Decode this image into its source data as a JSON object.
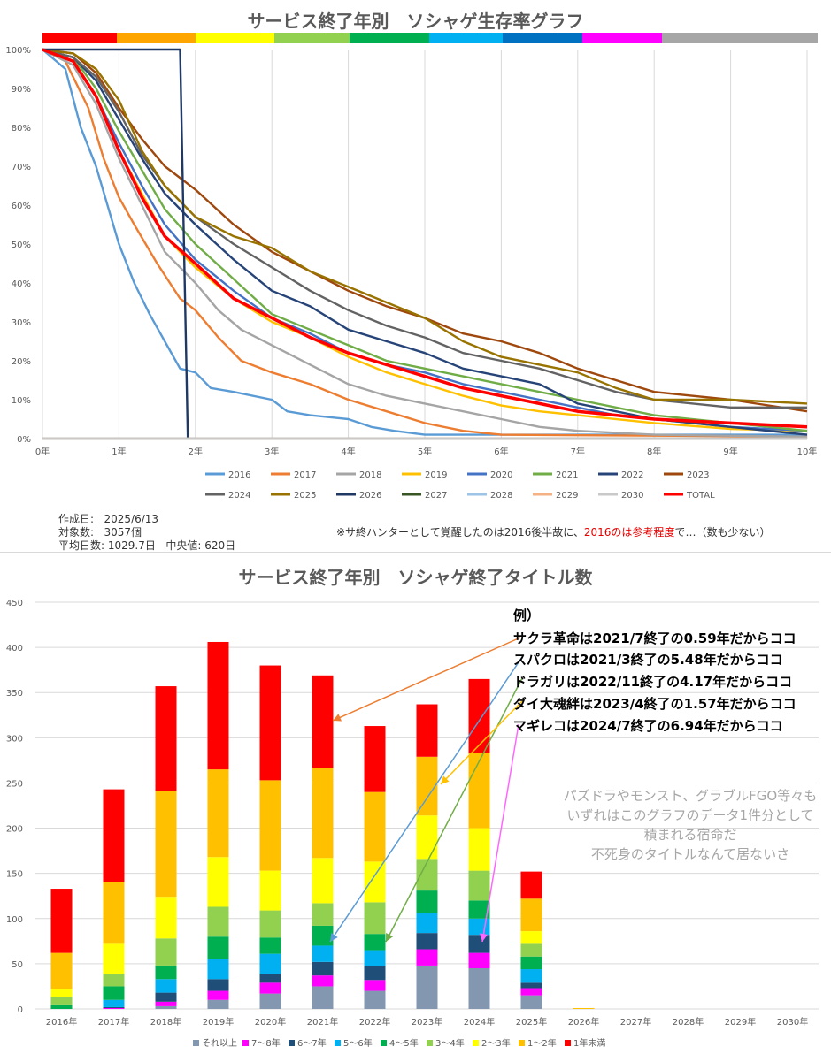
{
  "survival_chart": {
    "title": "サービス終了年別　ソシャゲ生存率グラフ",
    "color_bar": [
      "#ff0000",
      "#ffa500",
      "#ffff00",
      "#92d050",
      "#00b050",
      "#00b0f0",
      "#0070c0",
      "#ff00ff",
      "#a6a6a6"
    ],
    "chart_data": {
      "type": "line",
      "xlabel": "",
      "ylabel": "",
      "x_ticks": [
        "0年",
        "1年",
        "2年",
        "3年",
        "4年",
        "5年",
        "6年",
        "7年",
        "8年",
        "9年",
        "10年"
      ],
      "y_ticks": [
        "0%",
        "10%",
        "20%",
        "30%",
        "40%",
        "50%",
        "60%",
        "70%",
        "80%",
        "90%",
        "100%"
      ],
      "xlim": [
        0,
        10
      ],
      "ylim": [
        0,
        100
      ],
      "grid": "vertical",
      "legend": "bottom",
      "series": [
        {
          "name": "2016",
          "color": "#5b9bd5",
          "x": [
            0,
            0.3,
            0.5,
            0.7,
            1,
            1.2,
            1.4,
            1.6,
            1.8,
            2,
            2.2,
            2.5,
            3,
            3.2,
            3.5,
            4,
            4.3,
            4.6,
            5,
            10
          ],
          "y": [
            100,
            95,
            80,
            70,
            50,
            40,
            32,
            25,
            18,
            17,
            13,
            12,
            10,
            7,
            6,
            5,
            3,
            2,
            1,
            1
          ]
        },
        {
          "name": "2017",
          "color": "#ed7d31",
          "x": [
            0,
            0.3,
            0.6,
            0.8,
            1,
            1.2,
            1.5,
            1.8,
            2,
            2.3,
            2.6,
            3,
            3.5,
            4,
            4.5,
            5,
            5.5,
            6,
            10
          ],
          "y": [
            100,
            97,
            85,
            72,
            62,
            55,
            45,
            36,
            33,
            26,
            20,
            17,
            14,
            10,
            7,
            4,
            2,
            1,
            0.5
          ]
        },
        {
          "name": "2018",
          "color": "#a5a5a5",
          "x": [
            0,
            0.4,
            0.7,
            1,
            1.3,
            1.6,
            2,
            2.3,
            2.6,
            3,
            3.5,
            4,
            4.5,
            5,
            5.5,
            6,
            6.5,
            7,
            8,
            10
          ],
          "y": [
            100,
            96,
            86,
            72,
            60,
            48,
            40,
            33,
            28,
            24,
            19,
            14,
            11,
            9,
            7,
            5,
            3,
            2,
            1,
            0.5
          ]
        },
        {
          "name": "2019",
          "color": "#ffc000",
          "x": [
            0,
            0.4,
            0.7,
            1,
            1.3,
            1.6,
            2,
            2.5,
            3,
            3.5,
            4,
            4.5,
            5,
            5.5,
            6,
            6.5,
            7,
            8,
            9,
            10
          ],
          "y": [
            100,
            97,
            88,
            74,
            63,
            52,
            44,
            36,
            30,
            26,
            21,
            17,
            14,
            11,
            8.5,
            7,
            6,
            4,
            2.5,
            2
          ]
        },
        {
          "name": "2020",
          "color": "#4472c4",
          "x": [
            0,
            0.4,
            0.7,
            1,
            1.3,
            1.6,
            2,
            2.5,
            3,
            3.5,
            4,
            4.5,
            5,
            5.5,
            6,
            6.5,
            7,
            7.5,
            8,
            9,
            10
          ],
          "y": [
            100,
            97,
            88,
            76,
            65,
            55,
            46,
            38,
            31,
            27,
            22,
            19,
            17,
            14,
            12,
            10,
            8,
            6,
            5,
            3,
            2
          ]
        },
        {
          "name": "2021",
          "color": "#70ad47",
          "x": [
            0,
            0.4,
            0.7,
            1,
            1.3,
            1.6,
            2,
            2.5,
            3,
            3.5,
            4,
            4.5,
            5,
            5.5,
            6,
            6.5,
            7,
            7.5,
            8,
            9,
            10
          ],
          "y": [
            100,
            98,
            90,
            79,
            69,
            59,
            50,
            41,
            32,
            28,
            24,
            20,
            18,
            16,
            14,
            12,
            10,
            8,
            6,
            4,
            2
          ]
        },
        {
          "name": "2022",
          "color": "#264478",
          "x": [
            0,
            0.4,
            0.7,
            1,
            1.3,
            1.6,
            2,
            2.5,
            3,
            3.5,
            4,
            4.5,
            5,
            5.5,
            6,
            6.5,
            7,
            7.5,
            8,
            9,
            10
          ],
          "y": [
            100,
            98,
            92,
            82,
            72,
            63,
            55,
            46,
            38,
            34,
            28,
            25,
            22,
            18,
            16,
            14,
            9,
            7,
            5,
            3,
            1
          ]
        },
        {
          "name": "2023",
          "color": "#9e480e",
          "x": [
            0,
            0.4,
            0.7,
            1,
            1.3,
            1.6,
            2,
            2.5,
            3,
            3.5,
            4,
            4.5,
            5,
            5.5,
            6,
            6.5,
            7,
            7.5,
            8,
            9,
            10
          ],
          "y": [
            100,
            99,
            94,
            85,
            77,
            70,
            64,
            55,
            48,
            43,
            38,
            34,
            31,
            27,
            25,
            22,
            18,
            15,
            12,
            10,
            7
          ]
        },
        {
          "name": "2024",
          "color": "#636363",
          "x": [
            0,
            0.4,
            0.7,
            1,
            1.3,
            1.6,
            2,
            2.5,
            3,
            3.5,
            4,
            4.5,
            5,
            5.5,
            6,
            6.5,
            7,
            7.5,
            8,
            9,
            10
          ],
          "y": [
            100,
            98,
            93,
            84,
            73,
            65,
            57,
            50,
            44,
            38,
            33,
            29,
            26,
            22,
            20,
            18,
            15,
            12,
            10,
            8,
            8
          ]
        },
        {
          "name": "2025",
          "color": "#997300",
          "x": [
            0,
            0.4,
            0.7,
            1,
            1.3,
            1.6,
            2,
            2.5,
            3,
            3.5,
            4,
            4.5,
            5,
            5.5,
            6,
            6.5,
            7,
            7.5,
            8,
            9,
            10
          ],
          "y": [
            100,
            99,
            95,
            87,
            74,
            65,
            57,
            52,
            49,
            43,
            39,
            35,
            31,
            25,
            21,
            19,
            17,
            13,
            10,
            10,
            9
          ]
        },
        {
          "name": "2026",
          "color": "#1f3864",
          "x": [
            0,
            1.8,
            1.9
          ],
          "y": [
            100,
            100,
            0
          ]
        },
        {
          "name": "2027",
          "color": "#375623",
          "x": [
            0,
            10
          ],
          "y": [
            0,
            0
          ]
        },
        {
          "name": "2028",
          "color": "#9dc3e6",
          "x": [
            0,
            10
          ],
          "y": [
            0,
            0
          ]
        },
        {
          "name": "2029",
          "color": "#f4b183",
          "x": [
            0,
            10
          ],
          "y": [
            0,
            0
          ]
        },
        {
          "name": "2030",
          "color": "#c9c9c9",
          "x": [
            0,
            10
          ],
          "y": [
            0,
            0
          ]
        },
        {
          "name": "TOTAL",
          "color": "#ff0000",
          "x": [
            0,
            0.4,
            0.7,
            1,
            1.3,
            1.6,
            2,
            2.5,
            3,
            3.5,
            4,
            4.5,
            5,
            5.5,
            6,
            6.5,
            7,
            7.5,
            8,
            9,
            10
          ],
          "y": [
            100,
            97,
            88,
            74,
            62,
            52,
            45,
            36,
            31,
            26,
            22,
            19,
            16,
            13,
            11,
            9,
            7,
            6,
            5,
            4,
            3
          ]
        }
      ]
    }
  },
  "info": {
    "created_label": "作成日:",
    "created_value": "2025/6/13",
    "count_label": "対象数:",
    "count_value": "3057個",
    "avg_label": "平均日数:",
    "avg_value": "1029.7日",
    "median_label": "中央値:",
    "median_value": "620日",
    "note_prefix": "※サ終ハンターとして覚醒したのは2016後半故に、",
    "note_red": "2016のは参考程度",
    "note_suffix": "で…（数も少ない）"
  },
  "bar_chart": {
    "title": "サービス終了年別　ソシャゲ終了タイトル数",
    "annotations": [
      "例）",
      "サクラ革命は2021/7終了の0.59年だからココ",
      "スパクロは2021/3終了の5.48年だからココ",
      "ドラガリは2022/11終了の4.17年だからココ",
      "ダイ大魂絆は2023/4終了の1.57年だからココ",
      "マギレコは2024/7終了の6.94年だからココ"
    ],
    "grey_note": [
      "パズドラやモンスト、グラブルFGO等々も",
      "いずれはこのグラフのデータ1件分として",
      "積まれる宿命だ",
      "不死身のタイトルなんて居ないさ"
    ],
    "chart_data": {
      "type": "bar",
      "stacked": true,
      "categories": [
        "2016年",
        "2017年",
        "2018年",
        "2019年",
        "2020年",
        "2021年",
        "2022年",
        "2023年",
        "2024年",
        "2025年",
        "2026年",
        "2027年",
        "2028年",
        "2029年",
        "2030年"
      ],
      "y_ticks": [
        "0",
        "50",
        "100",
        "150",
        "200",
        "250",
        "300",
        "350",
        "400",
        "450"
      ],
      "ylim": [
        0,
        450
      ],
      "legend": "bottom",
      "series": [
        {
          "name": "それ以上",
          "color": "#8497b0",
          "values": [
            0,
            0,
            3,
            10,
            17,
            25,
            20,
            48,
            45,
            15,
            0,
            0,
            0,
            0,
            0
          ]
        },
        {
          "name": "7～8年",
          "color": "#ff00ff",
          "values": [
            0,
            1,
            5,
            10,
            12,
            12,
            12,
            18,
            17,
            8,
            0,
            0,
            0,
            0,
            0
          ]
        },
        {
          "name": "6～7年",
          "color": "#1f4e79",
          "values": [
            0,
            1,
            10,
            13,
            10,
            15,
            15,
            18,
            20,
            6,
            0,
            0,
            0,
            0,
            0
          ]
        },
        {
          "name": "5～6年",
          "color": "#00b0f0",
          "values": [
            0,
            8,
            15,
            22,
            22,
            18,
            18,
            22,
            18,
            15,
            0,
            0,
            0,
            0,
            0
          ]
        },
        {
          "name": "4～5年",
          "color": "#00b050",
          "values": [
            5,
            15,
            15,
            25,
            18,
            22,
            18,
            25,
            20,
            14,
            0,
            0,
            0,
            0,
            0
          ]
        },
        {
          "name": "3～4年",
          "color": "#92d050",
          "values": [
            8,
            14,
            30,
            33,
            30,
            25,
            35,
            35,
            33,
            15,
            0,
            0,
            0,
            0,
            0
          ]
        },
        {
          "name": "2～3年",
          "color": "#ffff00",
          "values": [
            9,
            34,
            46,
            55,
            44,
            50,
            45,
            48,
            47,
            13,
            0,
            0,
            0,
            0,
            0
          ]
        },
        {
          "name": "1～2年",
          "color": "#ffc000",
          "values": [
            40,
            67,
            117,
            97,
            100,
            100,
            77,
            65,
            83,
            36,
            1,
            0,
            0,
            0,
            0
          ]
        },
        {
          "name": "1年未満",
          "color": "#ff0000",
          "values": [
            71,
            103,
            116,
            141,
            127,
            102,
            73,
            58,
            82,
            30,
            0,
            0,
            0,
            0,
            0
          ]
        }
      ]
    }
  }
}
